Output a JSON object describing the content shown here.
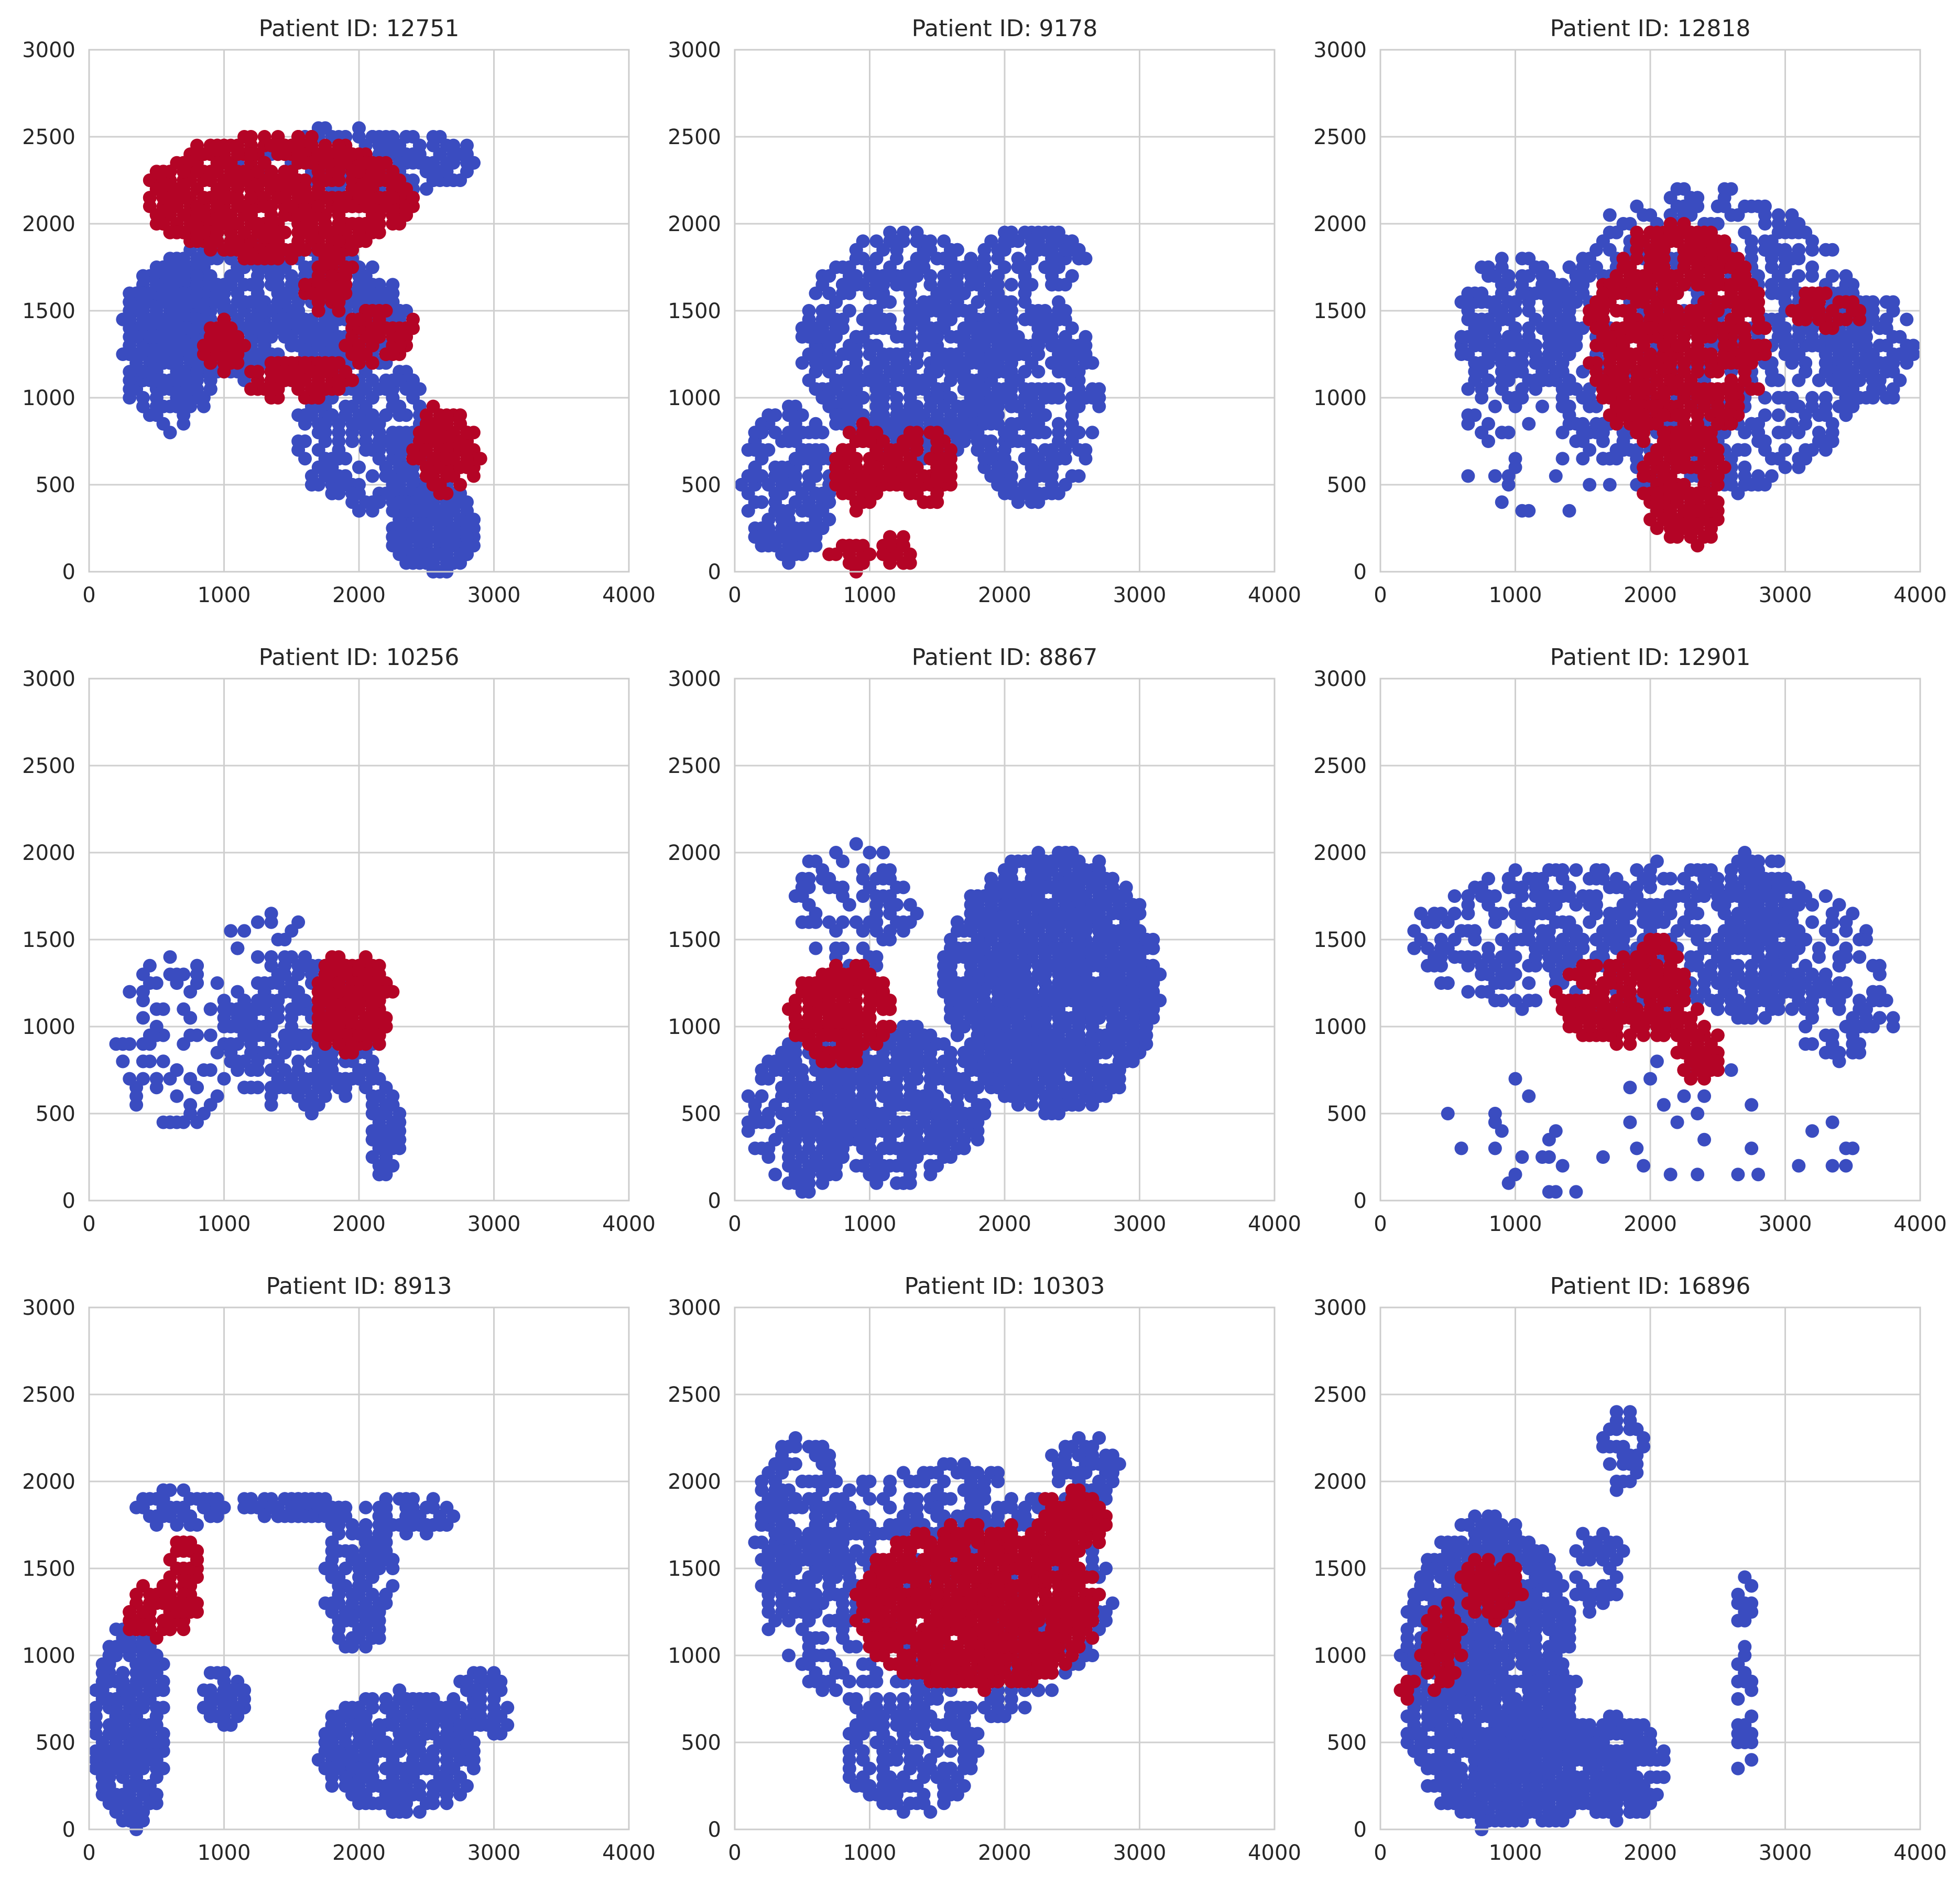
{
  "figure": {
    "background": "#ffffff",
    "grid": true
  },
  "legend_colors": {
    "class_0": "#3A4CC0",
    "class_1": "#B40426"
  },
  "chart_data": [
    {
      "type": "scatter",
      "title": "Patient ID: 12751",
      "xlim": [
        0,
        4000
      ],
      "ylim": [
        0,
        3000
      ],
      "xticks": [
        0,
        1000,
        2000,
        3000,
        4000
      ],
      "yticks": [
        0,
        500,
        1000,
        1500,
        2000,
        2500,
        3000
      ],
      "regions": [
        {
          "label": "blue",
          "cx": 1300,
          "cy": 1500,
          "rx": 1050,
          "ry": 400,
          "n": 700
        },
        {
          "label": "blue",
          "cx": 600,
          "cy": 1300,
          "rx": 350,
          "ry": 500,
          "n": 260
        },
        {
          "label": "blue",
          "cx": 2050,
          "cy": 800,
          "rx": 500,
          "ry": 450,
          "n": 260
        },
        {
          "label": "blue",
          "cx": 2550,
          "cy": 250,
          "rx": 320,
          "ry": 250,
          "n": 220
        },
        {
          "label": "blue",
          "cx": 2000,
          "cy": 2350,
          "rx": 900,
          "ry": 200,
          "n": 180
        },
        {
          "label": "red",
          "cx": 1400,
          "cy": 2150,
          "rx": 1000,
          "ry": 350,
          "n": 700
        },
        {
          "label": "red",
          "cx": 1800,
          "cy": 1650,
          "rx": 200,
          "ry": 150,
          "n": 60
        },
        {
          "label": "red",
          "cx": 1000,
          "cy": 1300,
          "rx": 150,
          "ry": 150,
          "n": 50
        },
        {
          "label": "red",
          "cx": 1550,
          "cy": 1100,
          "rx": 400,
          "ry": 130,
          "n": 90
        },
        {
          "label": "red",
          "cx": 2150,
          "cy": 1350,
          "rx": 300,
          "ry": 150,
          "n": 70
        },
        {
          "label": "red",
          "cx": 2650,
          "cy": 700,
          "rx": 250,
          "ry": 250,
          "n": 110
        }
      ]
    },
    {
      "type": "scatter",
      "title": "Patient ID: 9178",
      "xlim": [
        0,
        4000
      ],
      "ylim": [
        0,
        3000
      ],
      "xticks": [
        0,
        1000,
        2000,
        3000,
        4000
      ],
      "yticks": [
        0,
        500,
        1000,
        1500,
        2000,
        2500,
        3000
      ],
      "regions": [
        {
          "label": "blue",
          "cx": 1300,
          "cy": 1300,
          "rx": 800,
          "ry": 650,
          "n": 650
        },
        {
          "label": "blue",
          "cx": 2200,
          "cy": 1000,
          "rx": 500,
          "ry": 600,
          "n": 320
        },
        {
          "label": "blue",
          "cx": 400,
          "cy": 500,
          "rx": 350,
          "ry": 450,
          "n": 220
        },
        {
          "label": "blue",
          "cx": 2200,
          "cy": 1800,
          "rx": 400,
          "ry": 200,
          "n": 80
        },
        {
          "label": "red",
          "cx": 950,
          "cy": 600,
          "rx": 220,
          "ry": 230,
          "n": 90
        },
        {
          "label": "red",
          "cx": 1400,
          "cy": 600,
          "rx": 250,
          "ry": 230,
          "n": 90
        },
        {
          "label": "red",
          "cx": 850,
          "cy": 100,
          "rx": 150,
          "ry": 100,
          "n": 30
        },
        {
          "label": "red",
          "cx": 1200,
          "cy": 120,
          "rx": 120,
          "ry": 100,
          "n": 25
        }
      ]
    },
    {
      "type": "scatter",
      "title": "Patient ID: 12818",
      "xlim": [
        0,
        4000
      ],
      "ylim": [
        0,
        3000
      ],
      "xticks": [
        0,
        1000,
        2000,
        3000,
        4000
      ],
      "yticks": [
        0,
        500,
        1000,
        1500,
        2000,
        2500,
        3000
      ],
      "regions": [
        {
          "label": "blue",
          "cx": 2400,
          "cy": 1300,
          "rx": 1200,
          "ry": 900,
          "n": 700
        },
        {
          "label": "blue",
          "cx": 1000,
          "cy": 1400,
          "rx": 450,
          "ry": 400,
          "n": 220
        },
        {
          "label": "blue",
          "cx": 3500,
          "cy": 1300,
          "rx": 450,
          "ry": 350,
          "n": 150
        },
        {
          "label": "blue",
          "cx": 1200,
          "cy": 800,
          "rx": 700,
          "ry": 500,
          "n": 60
        },
        {
          "label": "red",
          "cx": 2200,
          "cy": 1350,
          "rx": 650,
          "ry": 650,
          "n": 650
        },
        {
          "label": "red",
          "cx": 2250,
          "cy": 500,
          "rx": 300,
          "ry": 350,
          "n": 180
        },
        {
          "label": "red",
          "cx": 3300,
          "cy": 1500,
          "rx": 250,
          "ry": 120,
          "n": 50
        }
      ]
    },
    {
      "type": "scatter",
      "title": "Patient ID: 10256",
      "xlim": [
        0,
        4000
      ],
      "ylim": [
        0,
        3000
      ],
      "xticks": [
        0,
        1000,
        2000,
        3000,
        4000
      ],
      "yticks": [
        0,
        500,
        1000,
        1500,
        2000,
        2500,
        3000
      ],
      "regions": [
        {
          "label": "blue",
          "cx": 1600,
          "cy": 950,
          "rx": 600,
          "ry": 450,
          "n": 260
        },
        {
          "label": "blue",
          "cx": 650,
          "cy": 900,
          "rx": 450,
          "ry": 500,
          "n": 90
        },
        {
          "label": "blue",
          "cx": 2200,
          "cy": 400,
          "rx": 120,
          "ry": 300,
          "n": 60
        },
        {
          "label": "blue",
          "cx": 1300,
          "cy": 1500,
          "rx": 300,
          "ry": 150,
          "n": 20
        },
        {
          "label": "red",
          "cx": 1950,
          "cy": 1130,
          "rx": 300,
          "ry": 280,
          "n": 240
        }
      ]
    },
    {
      "type": "scatter",
      "title": "Patient ID: 8867",
      "xlim": [
        0,
        4000
      ],
      "ylim": [
        0,
        3000
      ],
      "xticks": [
        0,
        1000,
        2000,
        3000,
        4000
      ],
      "yticks": [
        0,
        500,
        1000,
        1500,
        2000,
        2500,
        3000
      ],
      "regions": [
        {
          "label": "blue",
          "cx": 2350,
          "cy": 1250,
          "rx": 800,
          "ry": 750,
          "n": 1400
        },
        {
          "label": "blue",
          "cx": 1200,
          "cy": 550,
          "rx": 650,
          "ry": 450,
          "n": 450
        },
        {
          "label": "blue",
          "cx": 500,
          "cy": 500,
          "rx": 400,
          "ry": 450,
          "n": 160
        },
        {
          "label": "blue",
          "cx": 900,
          "cy": 1700,
          "rx": 450,
          "ry": 350,
          "n": 80
        },
        {
          "label": "red",
          "cx": 800,
          "cy": 1070,
          "rx": 380,
          "ry": 280,
          "n": 220
        }
      ]
    },
    {
      "type": "scatter",
      "title": "Patient ID: 12901",
      "xlim": [
        0,
        4000
      ],
      "ylim": [
        0,
        3000
      ],
      "xticks": [
        0,
        1000,
        2000,
        3000,
        4000
      ],
      "yticks": [
        0,
        500,
        1000,
        1500,
        2000,
        2500,
        3000
      ],
      "regions": [
        {
          "label": "blue",
          "cx": 1900,
          "cy": 1500,
          "rx": 1700,
          "ry": 450,
          "n": 600
        },
        {
          "label": "blue",
          "cx": 2800,
          "cy": 1500,
          "rx": 300,
          "ry": 500,
          "n": 150
        },
        {
          "label": "blue",
          "cx": 3450,
          "cy": 1100,
          "rx": 400,
          "ry": 300,
          "n": 80
        },
        {
          "label": "blue",
          "cx": 2000,
          "cy": 400,
          "rx": 1800,
          "ry": 400,
          "n": 50
        },
        {
          "label": "red",
          "cx": 1850,
          "cy": 1150,
          "rx": 550,
          "ry": 250,
          "n": 180
        },
        {
          "label": "red",
          "cx": 2050,
          "cy": 1350,
          "rx": 150,
          "ry": 150,
          "n": 50
        },
        {
          "label": "red",
          "cx": 2350,
          "cy": 850,
          "rx": 170,
          "ry": 180,
          "n": 60
        }
      ]
    },
    {
      "type": "scatter",
      "title": "Patient ID: 8913",
      "xlim": [
        0,
        4000
      ],
      "ylim": [
        0,
        3000
      ],
      "xticks": [
        0,
        1000,
        2000,
        3000,
        4000
      ],
      "yticks": [
        0,
        500,
        1000,
        1500,
        2000,
        2500,
        3000
      ],
      "regions": [
        {
          "label": "blue",
          "cx": 300,
          "cy": 600,
          "rx": 280,
          "ry": 600,
          "n": 300
        },
        {
          "label": "blue",
          "cx": 700,
          "cy": 1850,
          "rx": 350,
          "ry": 100,
          "n": 60
        },
        {
          "label": "blue",
          "cx": 1500,
          "cy": 1850,
          "rx": 400,
          "ry": 70,
          "n": 70
        },
        {
          "label": "blue",
          "cx": 1000,
          "cy": 750,
          "rx": 150,
          "ry": 180,
          "n": 40
        },
        {
          "label": "blue",
          "cx": 2000,
          "cy": 1450,
          "rx": 250,
          "ry": 450,
          "n": 130
        },
        {
          "label": "blue",
          "cx": 2300,
          "cy": 450,
          "rx": 600,
          "ry": 350,
          "n": 350
        },
        {
          "label": "blue",
          "cx": 2900,
          "cy": 700,
          "rx": 200,
          "ry": 250,
          "n": 70
        },
        {
          "label": "blue",
          "cx": 2400,
          "cy": 1800,
          "rx": 300,
          "ry": 120,
          "n": 50
        },
        {
          "label": "red",
          "cx": 500,
          "cy": 1250,
          "rx": 220,
          "ry": 150,
          "n": 70
        },
        {
          "label": "red",
          "cx": 700,
          "cy": 1450,
          "rx": 120,
          "ry": 250,
          "n": 60
        }
      ]
    },
    {
      "type": "scatter",
      "title": "Patient ID: 10303",
      "xlim": [
        0,
        4000
      ],
      "ylim": [
        0,
        3000
      ],
      "xticks": [
        0,
        1000,
        2000,
        3000,
        4000
      ],
      "yticks": [
        0,
        500,
        1000,
        1500,
        2000,
        2500,
        3000
      ],
      "regions": [
        {
          "label": "blue",
          "cx": 1500,
          "cy": 1350,
          "rx": 1300,
          "ry": 750,
          "n": 650
        },
        {
          "label": "blue",
          "cx": 500,
          "cy": 1750,
          "rx": 350,
          "ry": 500,
          "n": 200
        },
        {
          "label": "blue",
          "cx": 1300,
          "cy": 450,
          "rx": 500,
          "ry": 350,
          "n": 180
        },
        {
          "label": "blue",
          "cx": 2600,
          "cy": 2050,
          "rx": 250,
          "ry": 200,
          "n": 80
        },
        {
          "label": "red",
          "cx": 1800,
          "cy": 1280,
          "rx": 900,
          "ry": 470,
          "n": 1000
        },
        {
          "label": "red",
          "cx": 2500,
          "cy": 1750,
          "rx": 300,
          "ry": 180,
          "n": 100
        }
      ]
    },
    {
      "type": "scatter",
      "title": "Patient ID: 16896",
      "xlim": [
        0,
        4000
      ],
      "ylim": [
        0,
        3000
      ],
      "xticks": [
        0,
        1000,
        2000,
        3000,
        4000
      ],
      "yticks": [
        0,
        500,
        1000,
        1500,
        2000,
        2500,
        3000
      ],
      "regions": [
        {
          "label": "blue",
          "cx": 800,
          "cy": 900,
          "rx": 650,
          "ry": 900,
          "n": 1100
        },
        {
          "label": "blue",
          "cx": 1250,
          "cy": 350,
          "rx": 600,
          "ry": 300,
          "n": 400
        },
        {
          "label": "blue",
          "cx": 1800,
          "cy": 350,
          "rx": 300,
          "ry": 300,
          "n": 150
        },
        {
          "label": "blue",
          "cx": 1800,
          "cy": 2200,
          "rx": 150,
          "ry": 250,
          "n": 30
        },
        {
          "label": "blue",
          "cx": 2700,
          "cy": 800,
          "rx": 60,
          "ry": 700,
          "n": 40
        },
        {
          "label": "blue",
          "cx": 1600,
          "cy": 1500,
          "rx": 200,
          "ry": 250,
          "n": 40
        },
        {
          "label": "red",
          "cx": 820,
          "cy": 1400,
          "rx": 220,
          "ry": 180,
          "n": 90
        },
        {
          "label": "red",
          "cx": 450,
          "cy": 1050,
          "rx": 150,
          "ry": 250,
          "n": 60
        },
        {
          "label": "red",
          "cx": 200,
          "cy": 800,
          "rx": 70,
          "ry": 40,
          "n": 10
        }
      ]
    }
  ]
}
